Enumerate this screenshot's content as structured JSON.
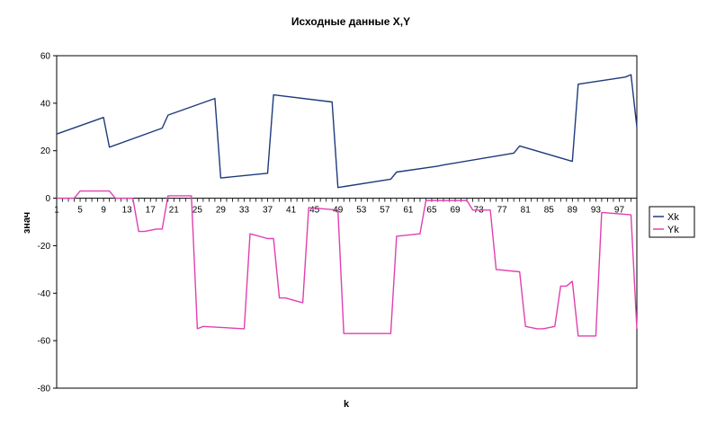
{
  "chart_data": {
    "type": "line",
    "title": "Исходные данные X,Y",
    "xlabel": "k",
    "ylabel": "знач",
    "xlim": [
      1,
      100
    ],
    "ylim": [
      -80,
      60
    ],
    "yticks": [
      60,
      40,
      20,
      0,
      -20,
      -40,
      -60,
      -80
    ],
    "xticks": [
      1,
      5,
      9,
      13,
      17,
      21,
      25,
      29,
      33,
      37,
      41,
      45,
      49,
      53,
      57,
      61,
      65,
      69,
      73,
      77,
      81,
      85,
      89,
      93,
      97
    ],
    "grid": false,
    "legend": "right",
    "series": [
      {
        "name": "Xk",
        "color": "#1f3a7a",
        "x": [
          1,
          9,
          10,
          19,
          20,
          28,
          29,
          37,
          38,
          48,
          49,
          58,
          59,
          66,
          67,
          79,
          80,
          89,
          90,
          98,
          99,
          100
        ],
        "values": [
          27,
          34,
          21.5,
          29.5,
          35,
          42,
          8.5,
          10.5,
          43.5,
          40.5,
          4.5,
          8,
          11,
          13.5,
          14,
          19,
          22,
          15.5,
          48,
          51,
          52,
          30
        ]
      },
      {
        "name": "Yk",
        "color": "#e040b0",
        "x": [
          1,
          4,
          5,
          10,
          11,
          13,
          14,
          15,
          16,
          18,
          19,
          20,
          24,
          25,
          26,
          33,
          34,
          37,
          38,
          39,
          40,
          43,
          44,
          49,
          50,
          58,
          59,
          63,
          64,
          71,
          72,
          75,
          76,
          80,
          81,
          83,
          84,
          86,
          87,
          88,
          89,
          90,
          93,
          94,
          99,
          100
        ],
        "values": [
          0,
          0,
          3,
          3,
          0,
          0,
          0,
          -14,
          -14,
          -13,
          -13,
          1,
          1,
          -55,
          -54,
          -55,
          -15,
          -17,
          -17,
          -42,
          -42,
          -44,
          -4,
          -5,
          -57,
          -57,
          -16,
          -15,
          -1,
          -1,
          -5,
          -5,
          -30,
          -31,
          -54,
          -55,
          -55,
          -54,
          -37,
          -37,
          -35,
          -58,
          -58,
          -6,
          -7,
          -55
        ]
      }
    ]
  }
}
